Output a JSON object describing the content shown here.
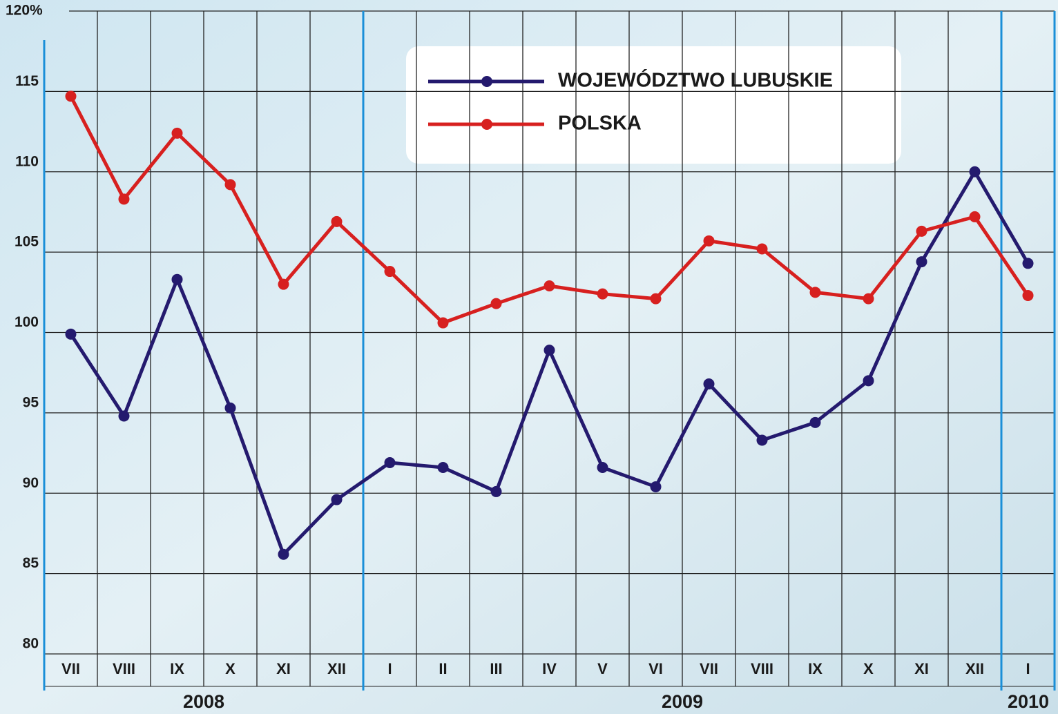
{
  "chart_data": {
    "type": "line",
    "categories": [
      "VII",
      "VIII",
      "IX",
      "X",
      "XI",
      "XII",
      "I",
      "II",
      "III",
      "IV",
      "V",
      "VI",
      "VII",
      "VIII",
      "IX",
      "X",
      "XI",
      "XII",
      "I"
    ],
    "years": [
      "2008",
      "2009",
      "2010"
    ],
    "series": [
      {
        "name": "WOJEWÓDZTWO LUBUSKIE",
        "color": "#241a6e",
        "values": [
          99.9,
          94.8,
          103.3,
          95.3,
          86.2,
          89.6,
          91.9,
          91.6,
          90.1,
          98.9,
          91.6,
          90.4,
          96.8,
          93.3,
          94.4,
          97.0,
          104.4,
          110.0,
          104.3
        ]
      },
      {
        "name": "POLSKA",
        "color": "#d7201f",
        "values": [
          114.7,
          108.3,
          112.4,
          109.2,
          103.0,
          106.9,
          103.8,
          100.6,
          101.8,
          102.9,
          102.4,
          102.1,
          105.7,
          105.2,
          102.5,
          102.1,
          106.3,
          107.2,
          102.3
        ]
      }
    ],
    "ylim": [
      80,
      120
    ],
    "yticks": [
      80,
      85,
      90,
      95,
      100,
      105,
      110,
      115,
      {
        "value": 120,
        "label": "120%"
      }
    ],
    "grid": true
  }
}
